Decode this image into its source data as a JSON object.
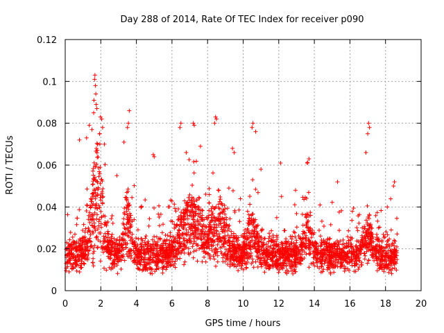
{
  "chart_data": {
    "type": "scatter",
    "title": "Day 288 of 2014, Rate Of TEC Index for receiver p090",
    "xlabel": "GPS time / hours",
    "ylabel": "ROTI / TECUs",
    "xlim": [
      0,
      20
    ],
    "ylim": [
      0,
      0.12
    ],
    "xticks": [
      0,
      2,
      4,
      6,
      8,
      10,
      12,
      14,
      16,
      18,
      20
    ],
    "xtick_labels": [
      "0",
      "2",
      "4",
      "6",
      "8",
      "10",
      "12",
      "14",
      "16",
      "18",
      "20"
    ],
    "yticks": [
      0,
      0.02,
      0.04,
      0.06,
      0.08,
      0.1,
      0.12
    ],
    "ytick_labels": [
      "0",
      "0.02",
      "0.04",
      "0.06",
      "0.08",
      "0.1",
      "0.12"
    ],
    "grid": true,
    "marker": "+",
    "color": "#ff0000",
    "series": [
      {
        "name": "ROTI",
        "points": [
          [
            1.67,
            0.103
          ],
          [
            1.65,
            0.101
          ],
          [
            1.7,
            0.098
          ],
          [
            1.72,
            0.094
          ],
          [
            1.62,
            0.091
          ],
          [
            1.74,
            0.089
          ],
          [
            1.78,
            0.087
          ],
          [
            1.6,
            0.085
          ],
          [
            1.98,
            0.083
          ],
          [
            2.05,
            0.082
          ],
          [
            1.35,
            0.079
          ],
          [
            1.5,
            0.077
          ],
          [
            2.1,
            0.078
          ],
          [
            3.6,
            0.086
          ],
          [
            3.55,
            0.08
          ],
          [
            3.5,
            0.078
          ],
          [
            6.5,
            0.08
          ],
          [
            6.45,
            0.078
          ],
          [
            7.2,
            0.08
          ],
          [
            7.25,
            0.079
          ],
          [
            8.45,
            0.083
          ],
          [
            8.5,
            0.082
          ],
          [
            8.4,
            0.08
          ],
          [
            10.55,
            0.08
          ],
          [
            10.5,
            0.078
          ],
          [
            10.7,
            0.076
          ],
          [
            17.05,
            0.08
          ],
          [
            17.1,
            0.078
          ],
          [
            17.0,
            0.075
          ],
          [
            1.2,
            0.073
          ],
          [
            0.8,
            0.072
          ],
          [
            2.2,
            0.07
          ],
          [
            3.3,
            0.071
          ],
          [
            5.0,
            0.064
          ],
          [
            4.95,
            0.065
          ],
          [
            9.4,
            0.068
          ],
          [
            9.5,
            0.066
          ],
          [
            12.1,
            0.061
          ],
          [
            13.7,
            0.063
          ],
          [
            13.6,
            0.061
          ],
          [
            16.9,
            0.066
          ],
          [
            18.5,
            0.052
          ],
          [
            18.45,
            0.05
          ],
          [
            7.6,
            0.069
          ],
          [
            6.8,
            0.066
          ],
          [
            11.0,
            0.058
          ],
          [
            15.3,
            0.052
          ],
          [
            2.9,
            0.055
          ]
        ]
      }
    ]
  }
}
